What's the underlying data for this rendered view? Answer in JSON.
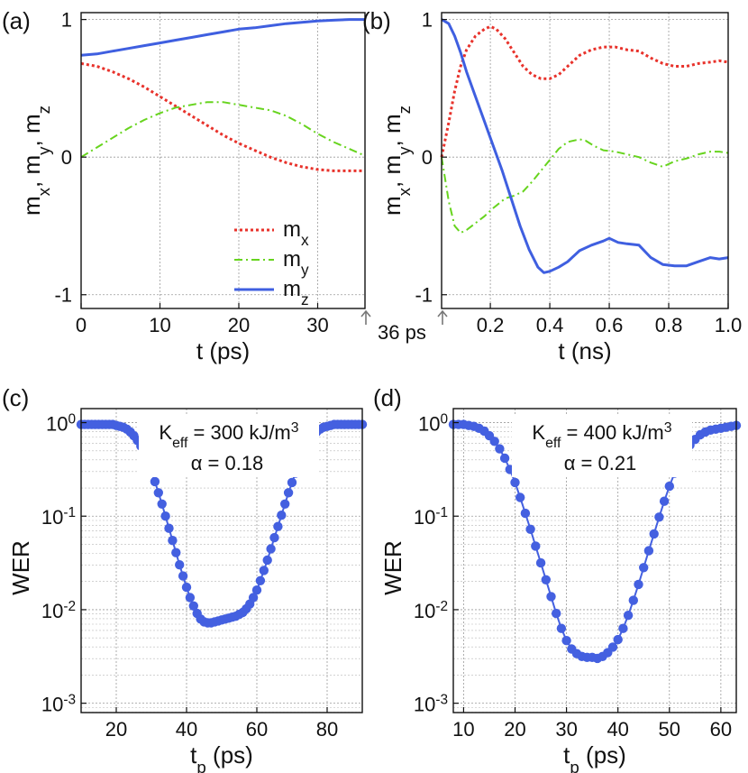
{
  "colors": {
    "mx": "#e8322b",
    "my": "#67d41e",
    "mz": "#3f5fe0",
    "wer": "#4460e0"
  },
  "chart_data": [
    {
      "id": "a",
      "type": "line",
      "panel_label": "(a)",
      "xlabel": "t (ps)",
      "ylabel_parts": [
        "m",
        "x",
        ", m",
        "y",
        ", m",
        "z"
      ],
      "xlim": [
        0,
        36
      ],
      "ylim": [
        -1.1,
        1.05
      ],
      "xticks": [
        0,
        10,
        20,
        30
      ],
      "xtick_labels": [
        "0",
        "10",
        "20",
        "30"
      ],
      "yticks": [
        -1,
        0,
        1
      ],
      "ytick_labels": [
        "-1",
        "0",
        "1"
      ],
      "annotation": "36 ps",
      "legend": [
        {
          "key": "mx",
          "base": "m",
          "sub": "x",
          "style": "dotted"
        },
        {
          "key": "my",
          "base": "m",
          "sub": "y",
          "style": "dashdot"
        },
        {
          "key": "mz",
          "base": "m",
          "sub": "z",
          "style": "solid"
        }
      ],
      "series": [
        {
          "name": "mx",
          "x": [
            0,
            2,
            4,
            6,
            8,
            10,
            12,
            14,
            16,
            18,
            20,
            22,
            24,
            26,
            28,
            30,
            32,
            34,
            36
          ],
          "y": [
            0.68,
            0.66,
            0.62,
            0.57,
            0.51,
            0.44,
            0.37,
            0.3,
            0.23,
            0.16,
            0.1,
            0.05,
            0.0,
            -0.04,
            -0.07,
            -0.09,
            -0.1,
            -0.1,
            -0.1
          ]
        },
        {
          "name": "my",
          "x": [
            0,
            2,
            4,
            6,
            8,
            10,
            12,
            14,
            16,
            18,
            20,
            22,
            24,
            26,
            28,
            30,
            32,
            34,
            36
          ],
          "y": [
            0.0,
            0.07,
            0.14,
            0.21,
            0.27,
            0.32,
            0.36,
            0.38,
            0.4,
            0.4,
            0.38,
            0.36,
            0.34,
            0.3,
            0.24,
            0.17,
            0.11,
            0.06,
            0.01
          ]
        },
        {
          "name": "mz",
          "x": [
            0,
            2,
            4,
            6,
            8,
            10,
            12,
            14,
            16,
            18,
            20,
            22,
            24,
            26,
            28,
            30,
            32,
            34,
            36
          ],
          "y": [
            0.74,
            0.75,
            0.77,
            0.79,
            0.81,
            0.83,
            0.85,
            0.87,
            0.89,
            0.91,
            0.93,
            0.94,
            0.955,
            0.97,
            0.98,
            0.99,
            0.995,
            1.0,
            1.0
          ]
        }
      ]
    },
    {
      "id": "b",
      "type": "line",
      "panel_label": "(b)",
      "xlabel": "t (ns)",
      "ylabel_parts": [
        "m",
        "x",
        ", m",
        "y",
        ", m",
        "z"
      ],
      "xlim": [
        0.036,
        1.0
      ],
      "ylim": [
        -1.1,
        1.05
      ],
      "xticks": [
        0.2,
        0.4,
        0.6,
        0.8,
        1.0
      ],
      "xtick_labels": [
        "0.2",
        "0.4",
        "0.6",
        "0.8",
        "1.0"
      ],
      "yticks": [
        -1,
        0,
        1
      ],
      "ytick_labels": [
        "-1",
        "0",
        "1"
      ],
      "series": [
        {
          "name": "mx",
          "x": [
            0.036,
            0.06,
            0.08,
            0.1,
            0.12,
            0.15,
            0.18,
            0.2,
            0.22,
            0.25,
            0.28,
            0.31,
            0.34,
            0.37,
            0.4,
            0.43,
            0.46,
            0.5,
            0.54,
            0.58,
            0.62,
            0.66,
            0.7,
            0.74,
            0.78,
            0.82,
            0.86,
            0.9,
            0.94,
            0.97,
            1.0
          ],
          "y": [
            0.0,
            0.25,
            0.48,
            0.66,
            0.78,
            0.88,
            0.93,
            0.95,
            0.93,
            0.86,
            0.76,
            0.66,
            0.6,
            0.57,
            0.57,
            0.6,
            0.66,
            0.74,
            0.78,
            0.8,
            0.8,
            0.78,
            0.77,
            0.72,
            0.68,
            0.66,
            0.66,
            0.68,
            0.69,
            0.7,
            0.69
          ]
        },
        {
          "name": "my",
          "x": [
            0.036,
            0.06,
            0.08,
            0.1,
            0.12,
            0.15,
            0.18,
            0.21,
            0.25,
            0.28,
            0.31,
            0.34,
            0.37,
            0.4,
            0.43,
            0.46,
            0.5,
            0.52,
            0.55,
            0.58,
            0.62,
            0.66,
            0.7,
            0.74,
            0.78,
            0.82,
            0.86,
            0.9,
            0.94,
            0.97,
            1.0
          ],
          "y": [
            0.0,
            -0.32,
            -0.5,
            -0.55,
            -0.53,
            -0.48,
            -0.43,
            -0.37,
            -0.3,
            -0.28,
            -0.25,
            -0.18,
            -0.1,
            -0.02,
            0.06,
            0.11,
            0.13,
            0.12,
            0.08,
            0.05,
            0.04,
            0.02,
            0.0,
            -0.04,
            -0.07,
            -0.03,
            -0.01,
            0.02,
            0.04,
            0.04,
            0.03
          ]
        },
        {
          "name": "mz",
          "x": [
            0.036,
            0.06,
            0.08,
            0.1,
            0.12,
            0.15,
            0.18,
            0.21,
            0.24,
            0.27,
            0.3,
            0.33,
            0.36,
            0.38,
            0.4,
            0.43,
            0.46,
            0.5,
            0.54,
            0.58,
            0.6,
            0.63,
            0.66,
            0.7,
            0.74,
            0.78,
            0.82,
            0.86,
            0.9,
            0.94,
            0.97,
            1.0
          ],
          "y": [
            1.0,
            0.97,
            0.88,
            0.76,
            0.62,
            0.44,
            0.26,
            0.08,
            -0.1,
            -0.3,
            -0.5,
            -0.67,
            -0.8,
            -0.84,
            -0.83,
            -0.8,
            -0.76,
            -0.68,
            -0.64,
            -0.61,
            -0.59,
            -0.62,
            -0.63,
            -0.64,
            -0.73,
            -0.78,
            -0.79,
            -0.79,
            -0.76,
            -0.73,
            -0.74,
            -0.73
          ]
        }
      ]
    },
    {
      "id": "c",
      "type": "scatter",
      "panel_label": "(c)",
      "xlabel_base": "t",
      "xlabel_sub": "p",
      "xlabel_rest": " (ps)",
      "ylabel": "WER",
      "yscale": "log",
      "xlim": [
        10,
        90
      ],
      "ylim_exp": [
        -3.1,
        0.15
      ],
      "xticks": [
        20,
        40,
        60,
        80
      ],
      "xtick_labels": [
        "20",
        "40",
        "60",
        "80"
      ],
      "ytick_exps": [
        0,
        -1,
        -2,
        -3
      ],
      "ytick_labels": [
        [
          "10",
          "0"
        ],
        [
          "10",
          "-1"
        ],
        [
          "10",
          "-2"
        ],
        [
          "10",
          "-3"
        ]
      ],
      "annotation_keff": [
        "K",
        "eff",
        " = 300 kJ/m",
        "3"
      ],
      "annotation_alpha": "α = 0.18",
      "x": [
        10,
        11,
        12,
        13,
        14,
        15,
        16,
        17,
        18,
        19,
        20,
        21,
        22,
        23,
        24,
        25,
        26,
        27,
        28,
        29,
        30,
        31,
        32,
        33,
        34,
        35,
        36,
        37,
        38,
        39,
        40,
        41,
        42,
        43,
        44,
        45,
        46,
        47,
        48,
        49,
        50,
        51,
        52,
        53,
        54,
        55,
        56,
        57,
        58,
        59,
        60,
        61,
        62,
        63,
        64,
        65,
        66,
        67,
        68,
        69,
        70,
        71,
        72,
        73,
        74,
        75,
        76,
        77,
        78,
        79,
        80,
        81,
        82,
        83,
        84,
        85,
        86,
        87,
        88,
        89,
        90
      ],
      "y_exp": [
        -0.02,
        -0.02,
        -0.02,
        -0.02,
        -0.02,
        -0.02,
        -0.02,
        -0.02,
        -0.02,
        -0.02,
        -0.03,
        -0.04,
        -0.05,
        -0.07,
        -0.1,
        -0.14,
        -0.19,
        -0.25,
        -0.33,
        -0.42,
        -0.52,
        -0.63,
        -0.75,
        -0.87,
        -1.0,
        -1.13,
        -1.26,
        -1.39,
        -1.52,
        -1.64,
        -1.76,
        -1.87,
        -1.96,
        -2.04,
        -2.1,
        -2.13,
        -2.14,
        -2.14,
        -2.13,
        -2.12,
        -2.11,
        -2.1,
        -2.09,
        -2.08,
        -2.07,
        -2.05,
        -2.03,
        -1.99,
        -1.94,
        -1.87,
        -1.79,
        -1.69,
        -1.58,
        -1.47,
        -1.35,
        -1.23,
        -1.11,
        -0.99,
        -0.87,
        -0.75,
        -0.64,
        -0.54,
        -0.44,
        -0.35,
        -0.27,
        -0.2,
        -0.14,
        -0.1,
        -0.07,
        -0.05,
        -0.04,
        -0.03,
        -0.02,
        -0.02,
        -0.02,
        -0.02,
        -0.02,
        -0.02,
        -0.02,
        -0.02,
        -0.02
      ]
    },
    {
      "id": "d",
      "type": "scatter",
      "panel_label": "(d)",
      "xlabel_base": "t",
      "xlabel_sub": "p",
      "xlabel_rest": " (ps)",
      "ylabel": "WER",
      "yscale": "log",
      "xlim": [
        8,
        63
      ],
      "ylim_exp": [
        -3.1,
        0.15
      ],
      "xticks": [
        10,
        20,
        30,
        40,
        50,
        60
      ],
      "xtick_labels": [
        "10",
        "20",
        "30",
        "40",
        "50",
        "60"
      ],
      "ytick_exps": [
        0,
        -1,
        -2,
        -3
      ],
      "ytick_labels": [
        [
          "10",
          "0"
        ],
        [
          "10",
          "-1"
        ],
        [
          "10",
          "-2"
        ],
        [
          "10",
          "-3"
        ]
      ],
      "annotation_keff": [
        "K",
        "eff",
        " = 400 kJ/m",
        "3"
      ],
      "annotation_alpha": "α = 0.21",
      "x": [
        8,
        9,
        10,
        11,
        12,
        13,
        14,
        15,
        16,
        17,
        18,
        19,
        20,
        21,
        22,
        23,
        24,
        25,
        26,
        27,
        28,
        29,
        30,
        31,
        32,
        33,
        34,
        35,
        36,
        37,
        38,
        39,
        40,
        41,
        42,
        43,
        44,
        45,
        46,
        47,
        48,
        49,
        50,
        51,
        52,
        53,
        54,
        55,
        56,
        57,
        58,
        59,
        60,
        61,
        62,
        63
      ],
      "y_exp": [
        -0.02,
        -0.02,
        -0.02,
        -0.03,
        -0.04,
        -0.06,
        -0.09,
        -0.14,
        -0.2,
        -0.28,
        -0.38,
        -0.5,
        -0.64,
        -0.8,
        -0.97,
        -1.14,
        -1.32,
        -1.5,
        -1.68,
        -1.86,
        -2.04,
        -2.2,
        -2.33,
        -2.42,
        -2.47,
        -2.5,
        -2.51,
        -2.51,
        -2.52,
        -2.5,
        -2.46,
        -2.4,
        -2.32,
        -2.2,
        -2.06,
        -1.9,
        -1.73,
        -1.55,
        -1.37,
        -1.19,
        -1.01,
        -0.84,
        -0.68,
        -0.54,
        -0.42,
        -0.32,
        -0.24,
        -0.18,
        -0.13,
        -0.1,
        -0.08,
        -0.07,
        -0.06,
        -0.05,
        -0.04,
        -0.03
      ]
    }
  ]
}
